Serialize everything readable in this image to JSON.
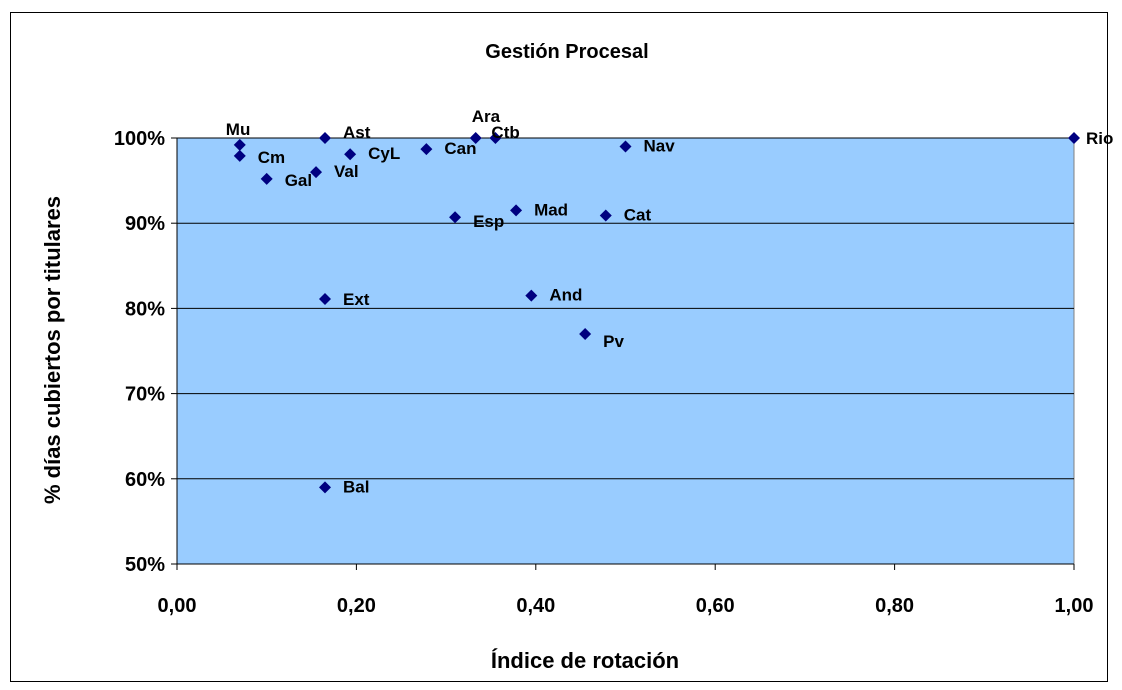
{
  "chart_data": {
    "type": "scatter",
    "title": "Gestión Procesal",
    "xlabel": "Índice de rotación",
    "ylabel": "% días cubiertos por titulares",
    "xlim": [
      0,
      1
    ],
    "ylim": [
      0.5,
      1.0
    ],
    "x_ticks": [
      "0,00",
      "0,20",
      "0,40",
      "0,60",
      "0,80",
      "1,00"
    ],
    "y_ticks": [
      "50%",
      "60%",
      "70%",
      "80%",
      "90%",
      "100%"
    ],
    "grid": "horizontal",
    "plot_background": "#99ccff",
    "marker_color": "#000080",
    "points": [
      {
        "label": "Mu",
        "x": 0.07,
        "y": 0.992
      },
      {
        "label": "Cm",
        "x": 0.07,
        "y": 0.979
      },
      {
        "label": "Gal",
        "x": 0.1,
        "y": 0.952
      },
      {
        "label": "Ast",
        "x": 0.165,
        "y": 1.0
      },
      {
        "label": "Val",
        "x": 0.155,
        "y": 0.96
      },
      {
        "label": "CyL",
        "x": 0.193,
        "y": 0.981
      },
      {
        "label": "Can",
        "x": 0.278,
        "y": 0.987
      },
      {
        "label": "Ara",
        "x": 0.333,
        "y": 1.0
      },
      {
        "label": "Ctb",
        "x": 0.355,
        "y": 1.0
      },
      {
        "label": "Nav",
        "x": 0.5,
        "y": 0.99
      },
      {
        "label": "Rio",
        "x": 1.0,
        "y": 1.0
      },
      {
        "label": "Esp",
        "x": 0.31,
        "y": 0.907
      },
      {
        "label": "Mad",
        "x": 0.378,
        "y": 0.915
      },
      {
        "label": "Cat",
        "x": 0.478,
        "y": 0.909
      },
      {
        "label": "Ext",
        "x": 0.165,
        "y": 0.811
      },
      {
        "label": "And",
        "x": 0.395,
        "y": 0.815
      },
      {
        "label": "Pv",
        "x": 0.455,
        "y": 0.77
      },
      {
        "label": "Bal",
        "x": 0.165,
        "y": 0.59
      }
    ]
  }
}
